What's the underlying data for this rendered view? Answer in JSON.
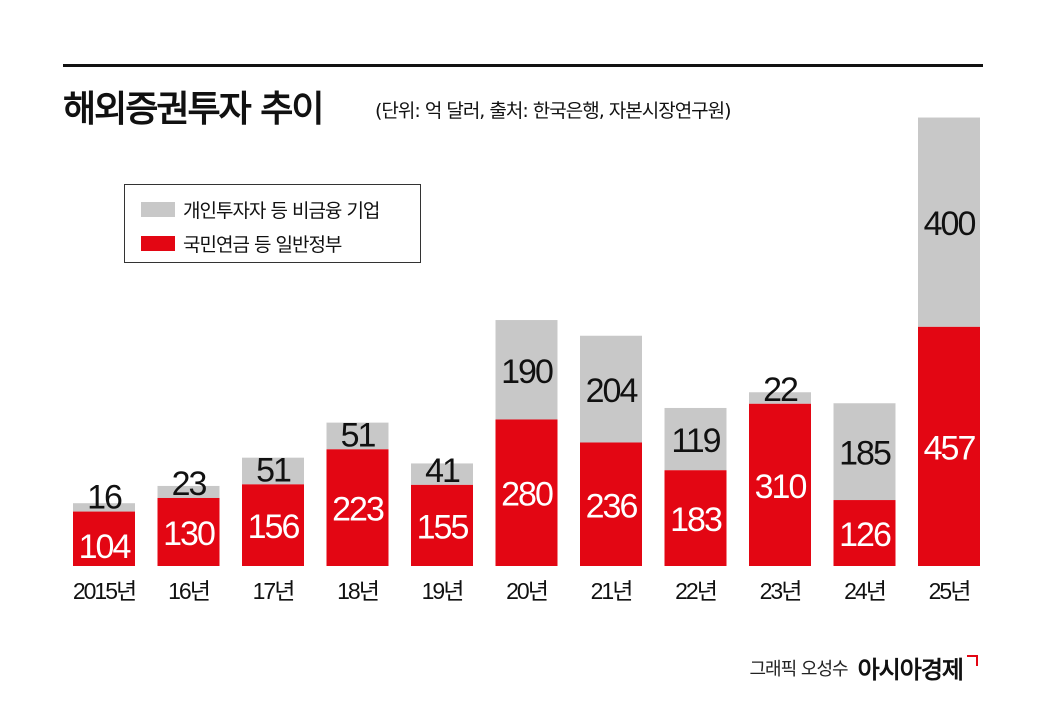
{
  "header": {
    "title": "해외증권투자 추이",
    "subtitle": "(단위: 억 달러, 출처: 한국은행, 자본시장연구원)"
  },
  "legend": {
    "items": [
      {
        "label": "개인투자자 등 비금융 기업",
        "color": "#c8c8c8"
      },
      {
        "label": "국민연금 등 일반정부",
        "color": "#e30613"
      }
    ]
  },
  "credit": {
    "author": "그래픽 오성수",
    "brand": "아시아경제"
  },
  "chart_data": {
    "type": "bar",
    "stacked": true,
    "categories": [
      "2015년",
      "16년",
      "17년",
      "18년",
      "19년",
      "20년",
      "21년",
      "22년",
      "23년",
      "24년",
      "25년"
    ],
    "series": [
      {
        "name": "국민연금 등 일반정부",
        "color": "#e30613",
        "values": [
          104,
          130,
          156,
          223,
          155,
          280,
          236,
          183,
          310,
          126,
          457
        ]
      },
      {
        "name": "개인투자자 등 비금융 기업",
        "color": "#c8c8c8",
        "values": [
          16,
          23,
          51,
          51,
          41,
          190,
          204,
          119,
          22,
          185,
          400
        ]
      }
    ],
    "ylim": [
      0,
      857
    ],
    "grid": false,
    "legend_position": "top-left"
  }
}
